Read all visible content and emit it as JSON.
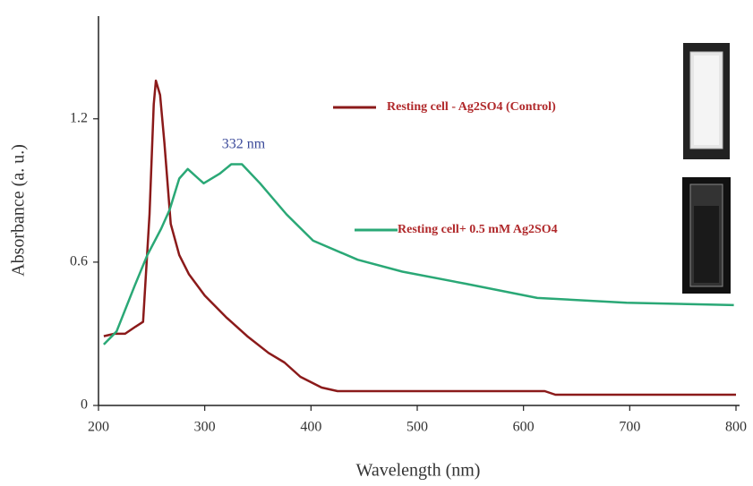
{
  "chart_data": {
    "type": "line",
    "x_label": "Wavelength (nm)",
    "y_label": "Absorbance (a. u.)",
    "annotation": "332 nm",
    "xlim": [
      200,
      800
    ],
    "ylim": [
      0,
      1.6
    ],
    "xticks": [
      200,
      300,
      400,
      500,
      600,
      700,
      800
    ],
    "yticks": [
      0,
      0.6,
      1.2
    ],
    "series": [
      {
        "name": "Resting cell - Ag2SO4 (Control)",
        "color": "#8b1a1a",
        "x": [
          205,
          215,
          225,
          235,
          242,
          248,
          252,
          254,
          258,
          262,
          268,
          276,
          285,
          300,
          320,
          340,
          360,
          375,
          390,
          410,
          425,
          500,
          620,
          630,
          700,
          800
        ],
        "values": [
          0.29,
          0.3,
          0.3,
          0.33,
          0.35,
          0.8,
          1.26,
          1.36,
          1.3,
          1.1,
          0.76,
          0.63,
          0.55,
          0.46,
          0.37,
          0.29,
          0.22,
          0.18,
          0.12,
          0.075,
          0.06,
          0.06,
          0.06,
          0.045,
          0.045,
          0.045
        ]
      },
      {
        "name": "Resting cell+ 0.5 mM Ag2SO4",
        "color": "#2aa876",
        "x": [
          205,
          217,
          234,
          246,
          259,
          267,
          276,
          284,
          294,
          299,
          314,
          325,
          335,
          352,
          377,
          402,
          444,
          486,
          545,
          613,
          697,
          798
        ],
        "values": [
          0.255,
          0.31,
          0.5,
          0.63,
          0.74,
          0.82,
          0.95,
          0.99,
          0.95,
          0.93,
          0.97,
          1.01,
          1.01,
          0.93,
          0.8,
          0.69,
          0.61,
          0.56,
          0.51,
          0.45,
          0.43,
          0.42
        ]
      }
    ]
  }
}
